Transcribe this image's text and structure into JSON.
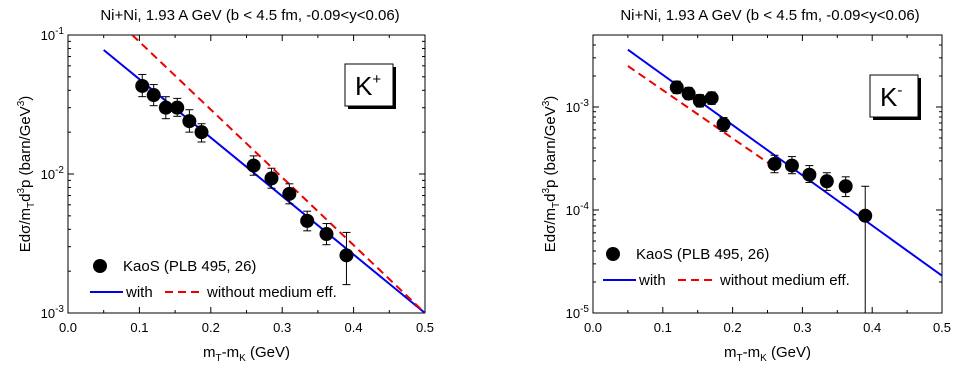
{
  "chart_data": [
    {
      "type": "scatter",
      "title": "Ni+Ni, 1.93 A GeV (b < 4.5 fm, -0.09<y<0.06)",
      "badge": {
        "base": "K",
        "sup": "+"
      },
      "xlabel": {
        "main": "m",
        "sub1": "T",
        "mid": "-m",
        "sub2": "K",
        "end": " (GeV)"
      },
      "ylabel": "Edσ/m_Td³p (barn/GeV³)",
      "xlim": [
        0.0,
        0.5
      ],
      "ylim": [
        0.001,
        0.1
      ],
      "yscale": "log",
      "xticks": [
        0.0,
        0.1,
        0.2,
        0.3,
        0.4,
        0.5
      ],
      "xtick_labels": [
        "0.0",
        "0.1",
        "0.2",
        "0.3",
        "0.4",
        "0.5"
      ],
      "ytick_labels": [
        {
          "value": 0.001,
          "base": "10",
          "exp": "-3"
        },
        {
          "value": 0.01,
          "base": "10",
          "exp": "-2"
        },
        {
          "value": 0.1,
          "base": "10",
          "exp": "-1"
        }
      ],
      "legend": {
        "placement": "bottom-left",
        "data_label": "KaoS (PLB 495, 26)",
        "with_label": "with",
        "without_label": "without medium eff."
      },
      "series": [
        {
          "name": "KaoS (PLB 495, 26)",
          "kind": "points",
          "x": [
            0.104,
            0.12,
            0.137,
            0.153,
            0.17,
            0.187,
            0.26,
            0.285,
            0.31,
            0.335,
            0.362,
            0.39
          ],
          "y": [
            0.043,
            0.037,
            0.03,
            0.03,
            0.024,
            0.02,
            0.0115,
            0.0093,
            0.0072,
            0.0046,
            0.0037,
            0.0026
          ],
          "err_lo": [
            0.036,
            0.031,
            0.025,
            0.026,
            0.02,
            0.017,
            0.0098,
            0.0079,
            0.0061,
            0.0039,
            0.0031,
            0.0016
          ],
          "err_hi": [
            0.052,
            0.044,
            0.036,
            0.035,
            0.029,
            0.023,
            0.0135,
            0.011,
            0.0085,
            0.0054,
            0.0044,
            0.0038
          ]
        },
        {
          "name": "with",
          "kind": "line",
          "color": "#0000ee",
          "dash": false,
          "x": [
            0.05,
            0.5
          ],
          "y": [
            0.078,
            0.001
          ]
        },
        {
          "name": "without medium eff.",
          "kind": "line",
          "color": "#ee0000",
          "dash": true,
          "x": [
            0.09,
            0.5
          ],
          "y": [
            0.1,
            0.001
          ]
        }
      ]
    },
    {
      "type": "scatter",
      "title": "Ni+Ni, 1.93 A GeV (b < 4.5 fm, -0.09<y<0.06)",
      "badge": {
        "base": "K",
        "sup": "-"
      },
      "xlabel": {
        "main": "m",
        "sub1": "T",
        "mid": "-m",
        "sub2": "K",
        "end": " (GeV)"
      },
      "ylabel": "Edσ/m_Td³p (barn/GeV³)",
      "xlim": [
        0.0,
        0.5
      ],
      "ylim": [
        1e-05,
        0.005
      ],
      "yscale": "log",
      "xticks": [
        0.0,
        0.1,
        0.2,
        0.3,
        0.4,
        0.5
      ],
      "xtick_labels": [
        "0.0",
        "0.1",
        "0.2",
        "0.3",
        "0.4",
        "0.5"
      ],
      "ytick_labels": [
        {
          "value": 1e-05,
          "base": "10",
          "exp": "-5"
        },
        {
          "value": 0.0001,
          "base": "10",
          "exp": "-4"
        },
        {
          "value": 0.001,
          "base": "10",
          "exp": "-3"
        }
      ],
      "legend": {
        "placement": "bottom-left",
        "data_label": "KaoS (PLB 495, 26)",
        "with_label": "with",
        "without_label": "without medium eff."
      },
      "series": [
        {
          "name": "KaoS (PLB 495, 26)",
          "kind": "points",
          "x": [
            0.12,
            0.137,
            0.153,
            0.17,
            0.187,
            0.26,
            0.285,
            0.31,
            0.335,
            0.362,
            0.39
          ],
          "y": [
            0.00155,
            0.00135,
            0.00115,
            0.00122,
            0.00068,
            0.00028,
            0.00027,
            0.00022,
            0.00019,
            0.00017,
            8.8e-05
          ],
          "err_lo": [
            0.00135,
            0.00118,
            0.001,
            0.00106,
            0.00058,
            0.00023,
            0.000225,
            0.000185,
            0.000155,
            0.000135,
            1e-05
          ],
          "err_hi": [
            0.00178,
            0.00155,
            0.00132,
            0.0014,
            0.00079,
            0.00034,
            0.00033,
            0.00027,
            0.00023,
            0.00021,
            0.00017
          ]
        },
        {
          "name": "with",
          "kind": "line",
          "color": "#0000ee",
          "dash": false,
          "x": [
            0.05,
            0.5
          ],
          "y": [
            0.0036,
            2.3e-05
          ]
        },
        {
          "name": "without medium eff.",
          "kind": "line",
          "color": "#ee0000",
          "dash": true,
          "x": [
            0.05,
            0.26
          ],
          "y": [
            0.0025,
            0.00026
          ]
        }
      ]
    }
  ]
}
